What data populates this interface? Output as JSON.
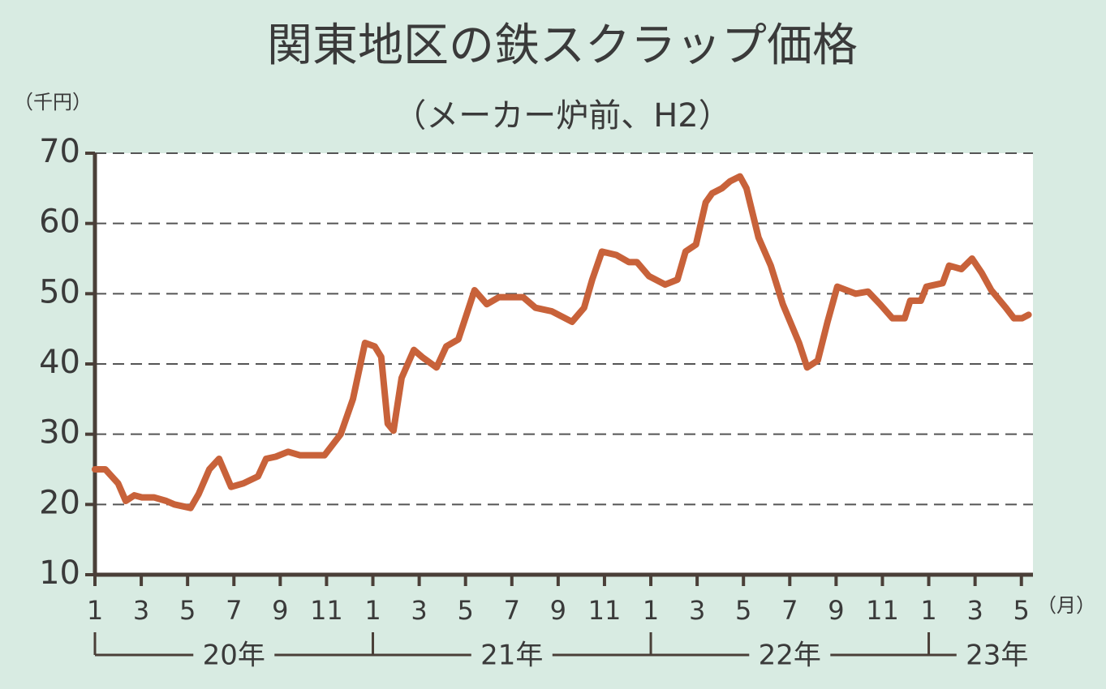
{
  "chart_data": {
    "type": "line",
    "title": "関東地区の鉄スクラップ価格",
    "subtitle": "（メーカー炉前、H2）",
    "y_unit": "（千円）",
    "x_unit": "（月）",
    "x": [
      0,
      0.45,
      1,
      1.33,
      1.7,
      2.03,
      2.56,
      3.08,
      3.43,
      4.13,
      4.48,
      4.94,
      5.36,
      5.88,
      6.41,
      7.04,
      7.39,
      7.81,
      8.34,
      8.86,
      9.91,
      10.26,
      10.61,
      11.14,
      11.66,
      12.08,
      12.36,
      12.64,
      12.89,
      13.24,
      13.77,
      14.12,
      14.75,
      15.17,
      15.69,
      16.04,
      16.39,
      16.92,
      17.44,
      18.49,
      19.02,
      19.72,
      20.6,
      21.12,
      21.47,
      21.89,
      22.52,
      23.05,
      23.4,
      23.92,
      24.62,
      25.15,
      25.5,
      25.95,
      26.37,
      26.65,
      27.07,
      27.42,
      27.85,
      28.13,
      28.65,
      29.18,
      29.7,
      30.4,
      30.75,
      31.21,
      31.63,
      32.05,
      32.85,
      33.38,
      33.9,
      34.43,
      34.96,
      35.2,
      35.66,
      35.9,
      36.6,
      36.88,
      37.41,
      37.87,
      38.28,
      38.7,
      39.33,
      39.68,
      40.03,
      40.31
    ],
    "series": [
      {
        "color": "#c8623a",
        "values": [
          25,
          25,
          23,
          20.5,
          21.3,
          21,
          21,
          20.5,
          20,
          19.5,
          21.5,
          25,
          26.5,
          22.5,
          23,
          24,
          26.5,
          26.8,
          27.5,
          27,
          27,
          28.5,
          30,
          35,
          43,
          42.5,
          41,
          31.5,
          30.5,
          38,
          42,
          41,
          39.5,
          42.5,
          43.5,
          47,
          50.5,
          48.5,
          49.5,
          49.5,
          48,
          47.5,
          46,
          48,
          52,
          56,
          55.5,
          54.5,
          54.5,
          52.5,
          51.3,
          52,
          56,
          57,
          63,
          64.3,
          65,
          66,
          66.7,
          65,
          58,
          54,
          48.5,
          43,
          39.5,
          40.5,
          46,
          51,
          50,
          50.3,
          48.5,
          46.5,
          46.5,
          49,
          49,
          51,
          51.5,
          54,
          53.5,
          55,
          53,
          50.5,
          48,
          46.5,
          46.5,
          47
        ]
      }
    ],
    "xlim": [
      0,
      40.5
    ],
    "ylim": [
      10,
      70
    ],
    "yticks": [
      10,
      20,
      30,
      40,
      50,
      60,
      70
    ],
    "xticks": [
      {
        "value": 0,
        "label": "1"
      },
      {
        "value": 2,
        "label": "3"
      },
      {
        "value": 4,
        "label": "5"
      },
      {
        "value": 6,
        "label": "7"
      },
      {
        "value": 8,
        "label": "9"
      },
      {
        "value": 10,
        "label": "11"
      },
      {
        "value": 12,
        "label": "1"
      },
      {
        "value": 14,
        "label": "3"
      },
      {
        "value": 16,
        "label": "5"
      },
      {
        "value": 18,
        "label": "7"
      },
      {
        "value": 20,
        "label": "9"
      },
      {
        "value": 22,
        "label": "11"
      },
      {
        "value": 24,
        "label": "1"
      },
      {
        "value": 26,
        "label": "3"
      },
      {
        "value": 28,
        "label": "5"
      },
      {
        "value": 30,
        "label": "7"
      },
      {
        "value": 32,
        "label": "9"
      },
      {
        "value": 34,
        "label": "11"
      },
      {
        "value": 36,
        "label": "1"
      },
      {
        "value": 38,
        "label": "3"
      },
      {
        "value": 40,
        "label": "5"
      }
    ],
    "x_groups": [
      {
        "value": 0,
        "label": "20年"
      },
      {
        "value": 12,
        "label": "21年"
      },
      {
        "value": 24,
        "label": "22年"
      },
      {
        "value": 36,
        "label": "23年"
      }
    ],
    "grid": true
  }
}
